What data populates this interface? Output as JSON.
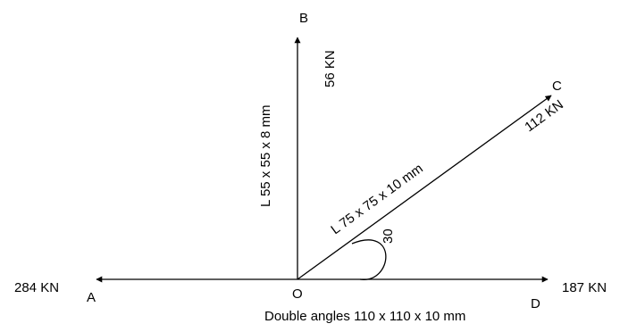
{
  "points": {
    "origin": "O",
    "a": "A",
    "b": "B",
    "c": "C",
    "d": "D"
  },
  "forces": {
    "a": "284 KN",
    "b": "56 KN",
    "c": "112 KN",
    "d": "187 KN"
  },
  "members": {
    "ob": "L 55 x 55 x 8 mm",
    "oc": "L 75 x 75 x 10 mm",
    "ad": "Double angles 110 x 110 x 10 mm"
  },
  "angle": {
    "label": "30",
    "degrees": 30
  },
  "colors": {
    "line": "#000000",
    "background": "#ffffff"
  }
}
